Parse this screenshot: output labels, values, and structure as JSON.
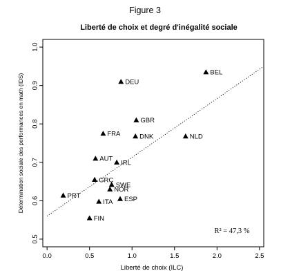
{
  "figure_label": "Figure 3",
  "chart_data": {
    "type": "scatter",
    "title": "Liberté de choix et degré d'inégalité sociale",
    "xlabel": "Liberté de choix (ILC)",
    "ylabel": "Détermination sociale des performances en math (IDS)",
    "xlim": [
      -0.05,
      2.55
    ],
    "ylim": [
      0.48,
      1.02
    ],
    "xticks": [
      "0.0",
      "0.5",
      "1.0",
      "1.5",
      "2.0",
      "2.5"
    ],
    "yticks": [
      "0.5",
      "0.6",
      "0.7",
      "0.8",
      "0.9",
      "1.0"
    ],
    "marker": "triangle",
    "annotation": "R² = 47,3 %",
    "trendline": {
      "style": "dotted",
      "from": [
        0.0,
        0.56
      ],
      "to": [
        2.55,
        0.95
      ]
    },
    "points": [
      {
        "label": "BEL",
        "x": 1.87,
        "y": 0.935
      },
      {
        "label": "DEU",
        "x": 0.87,
        "y": 0.91
      },
      {
        "label": "GBR",
        "x": 1.05,
        "y": 0.81
      },
      {
        "label": "FRA",
        "x": 0.66,
        "y": 0.775
      },
      {
        "label": "DNK",
        "x": 1.04,
        "y": 0.768
      },
      {
        "label": "NLD",
        "x": 1.63,
        "y": 0.768
      },
      {
        "label": "AUT",
        "x": 0.57,
        "y": 0.71
      },
      {
        "label": "IRL",
        "x": 0.82,
        "y": 0.7
      },
      {
        "label": "GRC",
        "x": 0.56,
        "y": 0.655
      },
      {
        "label": "SWE",
        "x": 0.76,
        "y": 0.642
      },
      {
        "label": "NOR",
        "x": 0.74,
        "y": 0.63
      },
      {
        "label": "PRT",
        "x": 0.19,
        "y": 0.614
      },
      {
        "label": "ESP",
        "x": 0.86,
        "y": 0.605
      },
      {
        "label": "ITA",
        "x": 0.61,
        "y": 0.598
      },
      {
        "label": "FIN",
        "x": 0.5,
        "y": 0.555
      }
    ]
  }
}
